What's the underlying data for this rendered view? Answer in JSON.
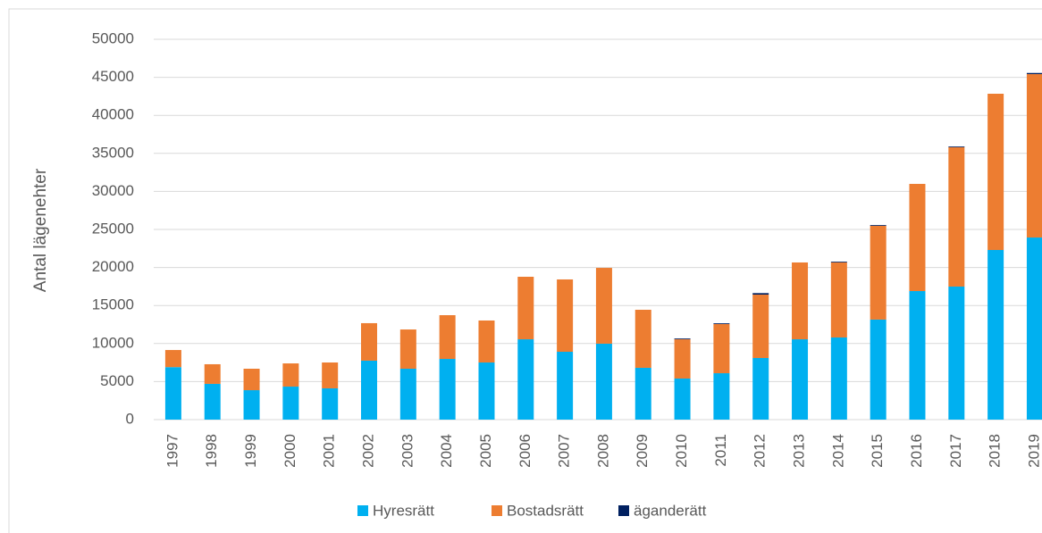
{
  "chart_data": {
    "type": "stacked_bar",
    "y_axis_label": "Antal lägenehter",
    "categories": [
      "1997",
      "1998",
      "1999",
      "2000",
      "2001",
      "2002",
      "2003",
      "2004",
      "2005",
      "2006",
      "2007",
      "2008",
      "2009",
      "2010",
      "2011",
      "2012",
      "2013",
      "2014",
      "2015",
      "2016",
      "2017",
      "2018",
      "2019"
    ],
    "series": [
      {
        "name": "Hyresrätt",
        "color": "#00b0f0",
        "values": [
          6900,
          4700,
          3870,
          4340,
          4110,
          7750,
          6690,
          7980,
          7510,
          10560,
          8920,
          9980,
          6810,
          5400,
          6100,
          8100,
          10560,
          10800,
          13150,
          16900,
          17490,
          22300,
          23940
        ]
      },
      {
        "name": "Bostadsrätt",
        "color": "#ed7d31",
        "values": [
          2250,
          2580,
          2820,
          3050,
          3400,
          4930,
          5160,
          5750,
          5520,
          8220,
          9510,
          9970,
          7630,
          5160,
          6460,
          8330,
          10100,
          9860,
          12320,
          14090,
          18310,
          20540,
          21480
        ]
      },
      {
        "name": "äganderätt",
        "color": "#002060",
        "values": [
          0,
          0,
          0,
          0,
          0,
          0,
          0,
          0,
          0,
          0,
          0,
          0,
          0,
          100,
          100,
          200,
          0,
          100,
          100,
          0,
          100,
          0,
          150
        ]
      }
    ],
    "ylim": [
      0,
      50000
    ],
    "yticks": [
      0,
      5000,
      10000,
      15000,
      20000,
      25000,
      30000,
      35000,
      40000,
      45000,
      50000
    ],
    "grid": true,
    "legend": "bottom"
  }
}
